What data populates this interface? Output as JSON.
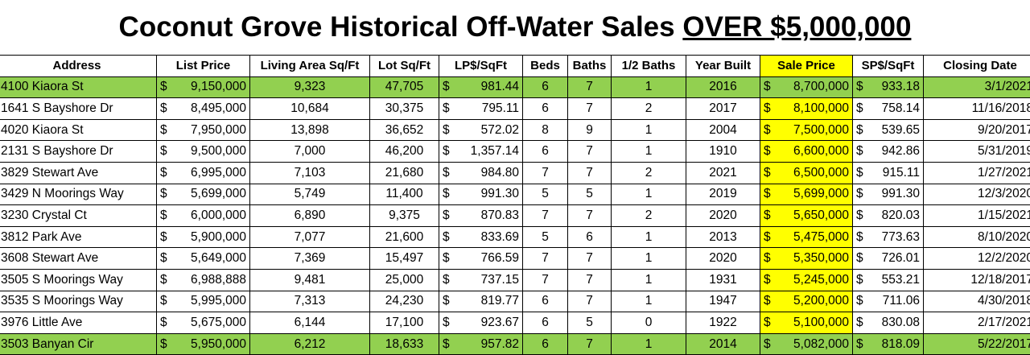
{
  "title": {
    "main": "Coconut Grove Historical Off-Water Sales ",
    "underlined": "OVER $5,000,000"
  },
  "columns": [
    "Address",
    "List Price",
    "Living Area Sq/Ft",
    "Lot Sq/Ft",
    "LP$/SqFt",
    "Beds",
    "Baths",
    "1/2 Baths",
    "Year Built",
    "Sale Price",
    "SP$/SqFt",
    "Closing Date"
  ],
  "highlight_colors": {
    "row": "#92d050",
    "sale_price_column": "#ffff00"
  },
  "rows": [
    {
      "address": "4100 Kiaora St",
      "list_price": "9,150,000",
      "living_area": "9,323",
      "lot": "47,705",
      "lp_sqft": "981.44",
      "beds": "6",
      "baths": "7",
      "half_baths": "1",
      "year_built": "2016",
      "sale_price": "8,700,000",
      "sp_sqft": "933.18",
      "closing_date": "3/1/2021",
      "highlight": true
    },
    {
      "address": "1641 S Bayshore Dr",
      "list_price": "8,495,000",
      "living_area": "10,684",
      "lot": "30,375",
      "lp_sqft": "795.11",
      "beds": "6",
      "baths": "7",
      "half_baths": "2",
      "year_built": "2017",
      "sale_price": "8,100,000",
      "sp_sqft": "758.14",
      "closing_date": "11/16/2018",
      "highlight": false
    },
    {
      "address": "4020 Kiaora St",
      "list_price": "7,950,000",
      "living_area": "13,898",
      "lot": "36,652",
      "lp_sqft": "572.02",
      "beds": "8",
      "baths": "9",
      "half_baths": "1",
      "year_built": "2004",
      "sale_price": "7,500,000",
      "sp_sqft": "539.65",
      "closing_date": "9/20/2017",
      "highlight": false
    },
    {
      "address": "2131 S Bayshore Dr",
      "list_price": "9,500,000",
      "living_area": "7,000",
      "lot": "46,200",
      "lp_sqft": "1,357.14",
      "beds": "6",
      "baths": "7",
      "half_baths": "1",
      "year_built": "1910",
      "sale_price": "6,600,000",
      "sp_sqft": "942.86",
      "closing_date": "5/31/2019",
      "highlight": false
    },
    {
      "address": "3829 Stewart Ave",
      "list_price": "6,995,000",
      "living_area": "7,103",
      "lot": "21,680",
      "lp_sqft": "984.80",
      "beds": "7",
      "baths": "7",
      "half_baths": "2",
      "year_built": "2021",
      "sale_price": "6,500,000",
      "sp_sqft": "915.11",
      "closing_date": "1/27/2021",
      "highlight": false
    },
    {
      "address": "3429 N Moorings Way",
      "list_price": "5,699,000",
      "living_area": "5,749",
      "lot": "11,400",
      "lp_sqft": "991.30",
      "beds": "5",
      "baths": "5",
      "half_baths": "1",
      "year_built": "2019",
      "sale_price": "5,699,000",
      "sp_sqft": "991.30",
      "closing_date": "12/3/2020",
      "highlight": false
    },
    {
      "address": "3230 Crystal Ct",
      "list_price": "6,000,000",
      "living_area": "6,890",
      "lot": "9,375",
      "lp_sqft": "870.83",
      "beds": "7",
      "baths": "7",
      "half_baths": "2",
      "year_built": "2020",
      "sale_price": "5,650,000",
      "sp_sqft": "820.03",
      "closing_date": "1/15/2021",
      "highlight": false
    },
    {
      "address": "3812 Park Ave",
      "list_price": "5,900,000",
      "living_area": "7,077",
      "lot": "21,600",
      "lp_sqft": "833.69",
      "beds": "5",
      "baths": "6",
      "half_baths": "1",
      "year_built": "2013",
      "sale_price": "5,475,000",
      "sp_sqft": "773.63",
      "closing_date": "8/10/2020",
      "highlight": false
    },
    {
      "address": "3608 Stewart Ave",
      "list_price": "5,649,000",
      "living_area": "7,369",
      "lot": "15,497",
      "lp_sqft": "766.59",
      "beds": "7",
      "baths": "7",
      "half_baths": "1",
      "year_built": "2020",
      "sale_price": "5,350,000",
      "sp_sqft": "726.01",
      "closing_date": "12/2/2020",
      "highlight": false
    },
    {
      "address": "3505 S Moorings Way",
      "list_price": "6,988,888",
      "living_area": "9,481",
      "lot": "25,000",
      "lp_sqft": "737.15",
      "beds": "7",
      "baths": "7",
      "half_baths": "1",
      "year_built": "1931",
      "sale_price": "5,245,000",
      "sp_sqft": "553.21",
      "closing_date": "12/18/2017",
      "highlight": false
    },
    {
      "address": "3535 S Moorings Way",
      "list_price": "5,995,000",
      "living_area": "7,313",
      "lot": "24,230",
      "lp_sqft": "819.77",
      "beds": "6",
      "baths": "7",
      "half_baths": "1",
      "year_built": "1947",
      "sale_price": "5,200,000",
      "sp_sqft": "711.06",
      "closing_date": "4/30/2018",
      "highlight": false
    },
    {
      "address": "3976 Little Ave",
      "list_price": "5,675,000",
      "living_area": "6,144",
      "lot": "17,100",
      "lp_sqft": "923.67",
      "beds": "6",
      "baths": "5",
      "half_baths": "0",
      "year_built": "1922",
      "sale_price": "5,100,000",
      "sp_sqft": "830.08",
      "closing_date": "2/17/2021",
      "highlight": false
    },
    {
      "address": "3503 Banyan Cir",
      "list_price": "5,950,000",
      "living_area": "6,212",
      "lot": "18,633",
      "lp_sqft": "957.82",
      "beds": "6",
      "baths": "7",
      "half_baths": "1",
      "year_built": "2014",
      "sale_price": "5,082,000",
      "sp_sqft": "818.09",
      "closing_date": "5/22/2017",
      "highlight": true
    }
  ]
}
